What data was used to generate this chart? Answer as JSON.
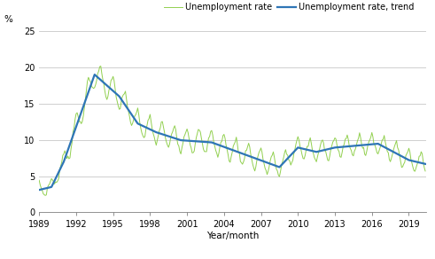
{
  "ylabel": "%",
  "xlabel": "Year/month",
  "legend_rate": "Unemployment rate",
  "legend_trend": "Unemployment rate, trend",
  "line_color_rate": "#92d050",
  "line_color_trend": "#2e75b6",
  "ylim": [
    0,
    25
  ],
  "yticks": [
    0,
    5,
    10,
    15,
    20,
    25
  ],
  "xticks": [
    1989,
    1992,
    1995,
    1998,
    2001,
    2004,
    2007,
    2010,
    2013,
    2016,
    2019
  ],
  "grid_color": "#c8c8c8",
  "background_color": "#ffffff"
}
